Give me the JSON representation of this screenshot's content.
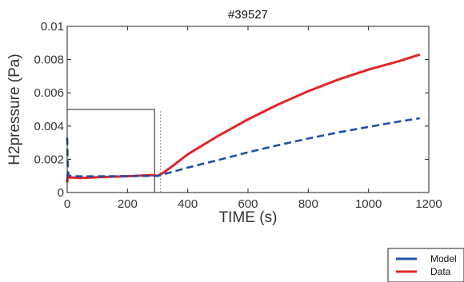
{
  "chart_data": {
    "type": "line",
    "title": "#39527",
    "xlabel": "TIME (s)",
    "ylabel": "H2pressure (Pa)",
    "xlim": [
      0,
      1200
    ],
    "ylim": [
      0,
      0.01
    ],
    "x_ticks": [
      0,
      200,
      400,
      600,
      800,
      1000,
      1200
    ],
    "y_ticks": [
      0,
      0.002,
      0.004,
      0.006,
      0.008,
      0.01
    ],
    "x_tick_labels": [
      "0",
      "200",
      "400",
      "600",
      "800",
      "1000",
      "1200"
    ],
    "y_tick_labels": [
      "0",
      "0.002",
      "0.004",
      "0.006",
      "0.008",
      "0.01"
    ],
    "grid": false,
    "legend_position": "bottom-right",
    "series": [
      {
        "name": "Model",
        "color": "#1f4fa3",
        "dash": "dashed",
        "x": [
          0,
          2,
          4,
          6,
          10,
          30,
          100,
          200,
          300,
          400,
          500,
          600,
          700,
          800,
          900,
          1000,
          1100,
          1170
        ],
        "y": [
          0.0033,
          0.0015,
          0.0011,
          0.001,
          0.001,
          0.00098,
          0.00098,
          0.00099,
          0.001,
          0.0015,
          0.00195,
          0.00242,
          0.00285,
          0.00325,
          0.00362,
          0.00395,
          0.00427,
          0.00447
        ]
      },
      {
        "name": "Data",
        "color": "#e0262b",
        "dash": "solid",
        "x": [
          0,
          2,
          5,
          15,
          50,
          100,
          200,
          280,
          300,
          320,
          350,
          400,
          500,
          600,
          700,
          800,
          900,
          1000,
          1100,
          1170
        ],
        "y": [
          0.0006,
          0.0011,
          0.0009,
          0.0009,
          0.00088,
          0.00092,
          0.00098,
          0.00105,
          0.001,
          0.0012,
          0.0016,
          0.0023,
          0.0034,
          0.0044,
          0.0053,
          0.0061,
          0.0068,
          0.0074,
          0.0079,
          0.0083
        ]
      }
    ],
    "annotations": [
      {
        "type": "rectangle",
        "x0": 0,
        "x1": 290,
        "y0": 0,
        "y1": 0.005,
        "color": "#222222",
        "style": "solid"
      },
      {
        "type": "vertical-line",
        "x": 310,
        "y0": 0,
        "y1": 0.005,
        "color": "#999999",
        "style": "dotted"
      }
    ]
  }
}
